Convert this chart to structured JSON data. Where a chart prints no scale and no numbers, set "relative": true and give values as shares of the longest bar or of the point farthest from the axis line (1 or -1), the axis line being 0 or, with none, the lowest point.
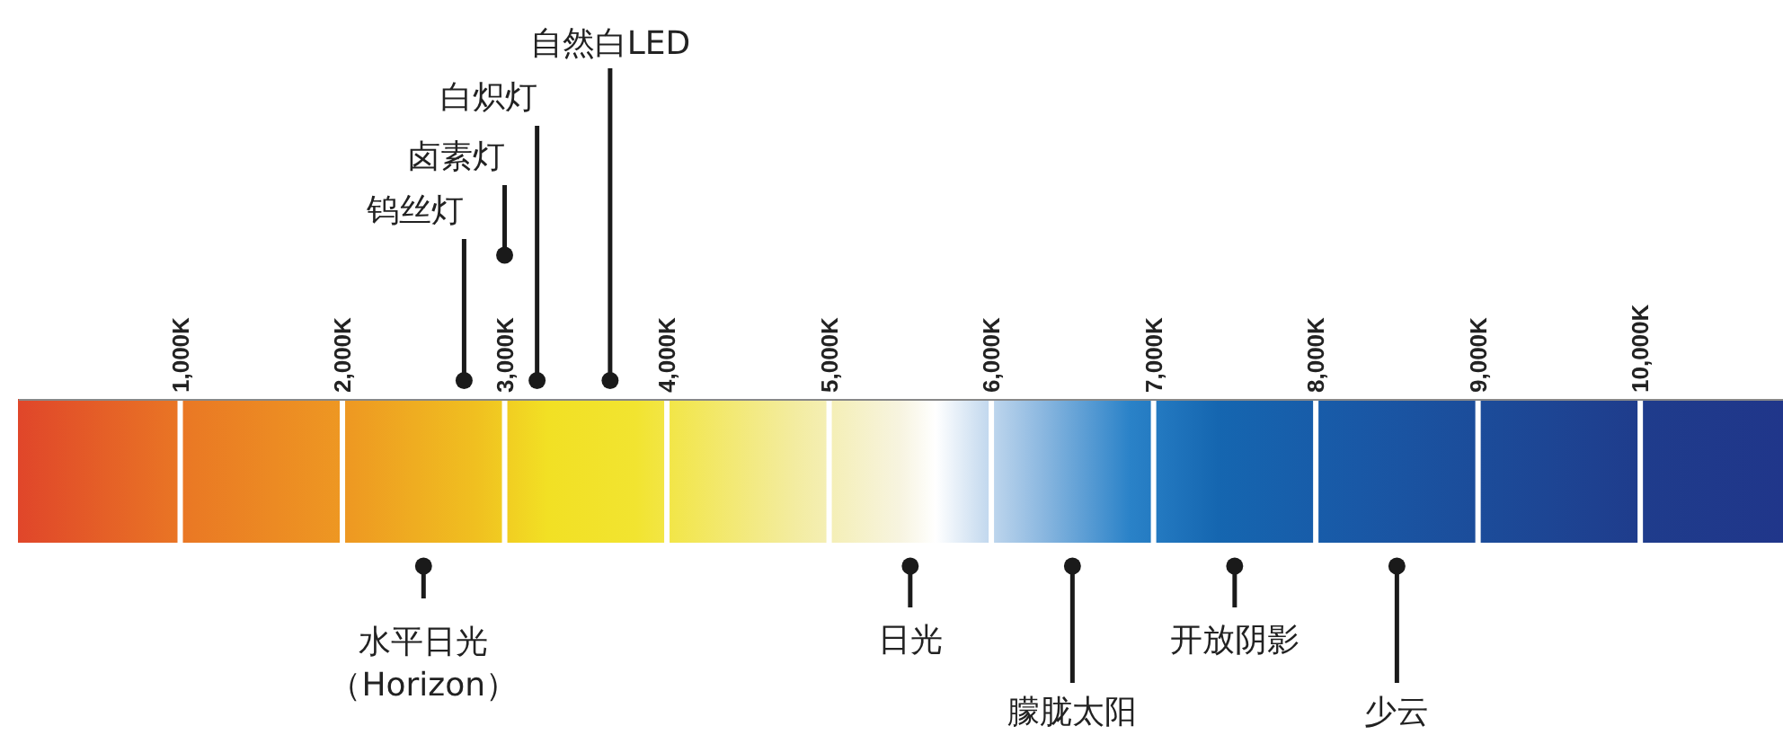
{
  "chart_data": {
    "type": "scatter",
    "relative": true,
    "marker": "circle",
    "tick_labels": "x",
    "ref_lines": [
      {
        "axis": "x",
        "value": 1000,
        "color": "#ffffff"
      },
      {
        "axis": "x",
        "value": 2000,
        "color": "#ffffff"
      },
      {
        "axis": "x",
        "value": 3000,
        "color": "#ffffff"
      },
      {
        "axis": "x",
        "value": 4000,
        "color": "#ffffff"
      },
      {
        "axis": "x",
        "value": 5000,
        "color": "#ffffff"
      },
      {
        "axis": "x",
        "value": 6000,
        "color": "#ffffff"
      },
      {
        "axis": "x",
        "value": 7000,
        "color": "#ffffff"
      },
      {
        "axis": "x",
        "value": 8000,
        "color": "#ffffff"
      },
      {
        "axis": "x",
        "value": 9000,
        "color": "#ffffff"
      },
      {
        "axis": "x",
        "value": 10000,
        "color": "#ffffff"
      }
    ],
    "xlim": [
      0,
      10880
    ],
    "xticks": [
      {
        "value": 1000,
        "label": "1,000K"
      },
      {
        "value": 2000,
        "label": "2,000K"
      },
      {
        "value": 3000,
        "label": "3,000K"
      },
      {
        "value": 4000,
        "label": "4,000K"
      },
      {
        "value": 5000,
        "label": "5,000K"
      },
      {
        "value": 6000,
        "label": "6,000K"
      },
      {
        "value": 7000,
        "label": "7,000K"
      },
      {
        "value": 8000,
        "label": "8,000K"
      },
      {
        "value": 9000,
        "label": "9,000K"
      },
      {
        "value": 10000,
        "label": "10,000K"
      }
    ],
    "series": [
      {
        "color": "#1a1a1a",
        "x": [
          2750,
          3000,
          3200,
          3650,
          2500,
          5500,
          6500,
          7500,
          8500
        ],
        "values": [
          0.11,
          0.86,
          0.11,
          0.11,
          -1,
          -1,
          -1,
          -1,
          -1
        ]
      }
    ],
    "annotations": [
      {
        "text": "钨丝灯",
        "x": 2750,
        "y": 0.11
      },
      {
        "text": "卤素灯",
        "x": 3000,
        "y": 0.86
      },
      {
        "text": "白炽灯",
        "x": 3200,
        "y": 0.11
      },
      {
        "text": "自然白LED",
        "x": 3650,
        "y": 0.11
      },
      {
        "text": "水平日光（Horizon）",
        "x": 2500,
        "y": -1
      },
      {
        "text": "日光",
        "x": 5500,
        "y": -1
      },
      {
        "text": "朦胧太阳",
        "x": 6500,
        "y": -1
      },
      {
        "text": "开放阴影",
        "x": 7500,
        "y": -1
      },
      {
        "text": "少云",
        "x": 8500,
        "y": -1
      }
    ]
  }
}
